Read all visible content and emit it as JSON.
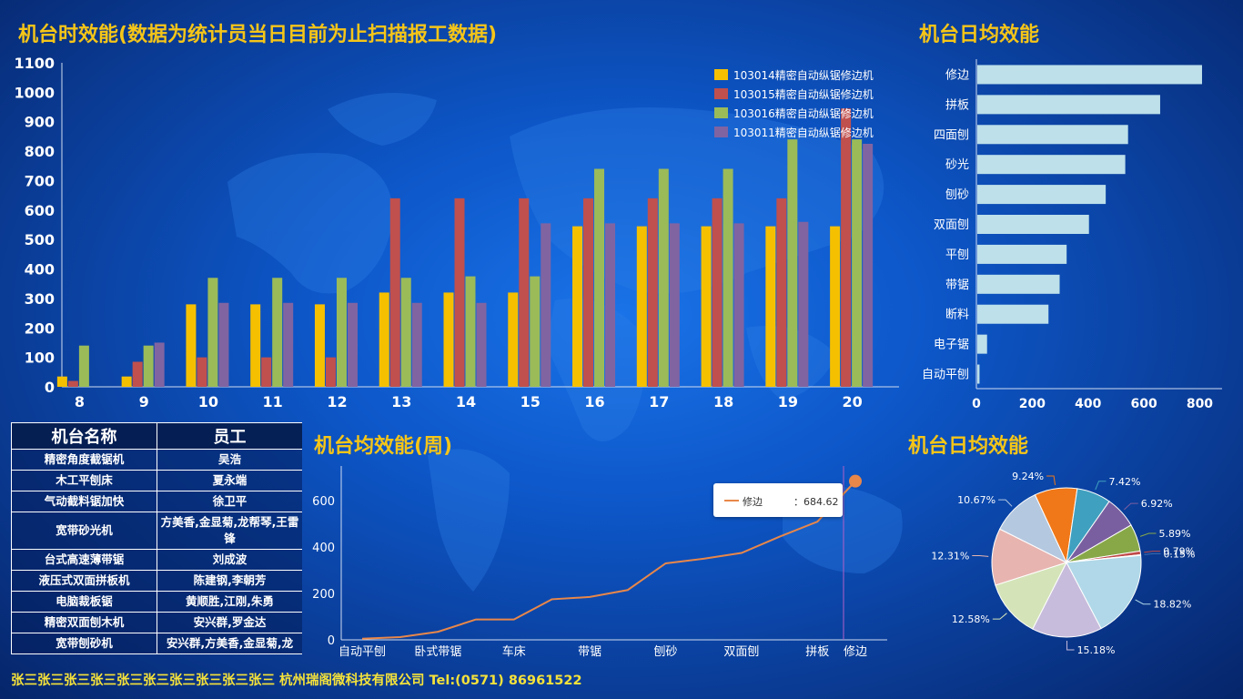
{
  "titles": {
    "hourly": "机台时效能(数据为统计员当日目前为止扫描报工数据)",
    "daily_bar": "机台日均效能",
    "weekly": "机台均效能(周)",
    "daily_pie": "机台日均效能"
  },
  "colors": {
    "title": "#f5c518",
    "series": [
      "#f5c000",
      "#c0504d",
      "#9bbb59",
      "#8064a2"
    ],
    "hbar": "#bde0ea",
    "line": "#e8874a"
  },
  "chart_data": [
    {
      "id": "hourly",
      "type": "bar",
      "categories": [
        "8",
        "9",
        "10",
        "11",
        "12",
        "13",
        "14",
        "15",
        "16",
        "17",
        "18",
        "19",
        "20"
      ],
      "ylim": [
        0,
        1100
      ],
      "yticks": [
        0,
        100,
        200,
        300,
        400,
        500,
        600,
        700,
        800,
        900,
        1000,
        1100
      ],
      "legend_position": "top-right",
      "series": [
        {
          "name": "103014精密自动纵锯修边机",
          "values": [
            35,
            35,
            280,
            280,
            280,
            320,
            320,
            320,
            545,
            545,
            545,
            545,
            545
          ]
        },
        {
          "name": "103015精密自动纵锯修边机",
          "values": [
            20,
            85,
            100,
            100,
            100,
            640,
            640,
            640,
            640,
            640,
            640,
            640,
            945
          ]
        },
        {
          "name": "103016精密自动纵锯修边机",
          "values": [
            140,
            140,
            370,
            370,
            370,
            370,
            375,
            375,
            740,
            740,
            740,
            840,
            840
          ]
        },
        {
          "name": "103011精密自动纵锯修边机",
          "values": [
            0,
            150,
            285,
            285,
            285,
            285,
            285,
            555,
            555,
            555,
            555,
            560,
            825
          ]
        }
      ]
    },
    {
      "id": "daily_bar",
      "type": "bar",
      "orientation": "horizontal",
      "categories": [
        "修边",
        "拼板",
        "四面刨",
        "砂光",
        "刨砂",
        "双面刨",
        "平刨",
        "带锯",
        "断料",
        "电子锯",
        "自动平刨"
      ],
      "values": [
        805,
        655,
        540,
        530,
        460,
        400,
        320,
        295,
        255,
        35,
        8
      ],
      "xlim": [
        0,
        880
      ],
      "xticks": [
        0,
        200,
        400,
        600,
        800
      ]
    },
    {
      "id": "weekly",
      "type": "line",
      "x": [
        "自动平刨",
        "",
        "卧式带锯",
        "",
        "车床",
        "",
        "带锯",
        "",
        "刨砂",
        "",
        "双面刨",
        "",
        "拼板",
        "修边"
      ],
      "x_labels": [
        "自动平刨",
        "卧式带锯",
        "车床",
        "带锯",
        "刨砂",
        "双面刨",
        "拼板"
      ],
      "y": [
        5,
        12,
        35,
        88,
        88,
        175,
        185,
        215,
        330,
        350,
        375,
        445,
        510,
        684.62
      ],
      "ylim": [
        0,
        750
      ],
      "yticks": [
        0,
        200,
        400,
        600
      ],
      "tooltip": {
        "series": "修边",
        "value": "：684.62"
      }
    },
    {
      "id": "daily_pie",
      "type": "pie",
      "slices": [
        {
          "label": "9.24%",
          "value": 9.24,
          "color": "#f07818"
        },
        {
          "label": "7.42%",
          "value": 7.42,
          "color": "#40a0c0"
        },
        {
          "label": "6.92%",
          "value": 6.92,
          "color": "#7a5fa0"
        },
        {
          "label": "5.89%",
          "value": 5.89,
          "color": "#88a848"
        },
        {
          "label": "0.79%",
          "value": 0.79,
          "color": "#c04848"
        },
        {
          "label": "0.15%",
          "value": 0.15,
          "color": "#3a6fb0"
        },
        {
          "label": "18.82%",
          "value": 18.82,
          "color": "#b0d8e8"
        },
        {
          "label": "15.18%",
          "value": 15.18,
          "color": "#c8bcdc"
        },
        {
          "label": "12.58%",
          "value": 12.58,
          "color": "#d4e4b8"
        },
        {
          "label": "12.31%",
          "value": 12.31,
          "color": "#e8b4b0"
        },
        {
          "label": "10.67%",
          "value": 10.67,
          "color": "#b4c8e0"
        }
      ]
    }
  ],
  "table": {
    "headers": [
      "机台名称",
      "员工"
    ],
    "rows": [
      [
        "精密角度截锯机",
        "吴浩"
      ],
      [
        "木工平刨床",
        "夏永端"
      ],
      [
        "气动截料锯加快",
        "徐卫平"
      ],
      [
        "宽带砂光机",
        "方美香,金显菊,龙帮琴,王雷锋"
      ],
      [
        "台式高速薄带锯",
        "刘成波"
      ],
      [
        "液压式双面拼板机",
        "陈建钢,李朝芳"
      ],
      [
        "电脑裁板锯",
        "黄顺胜,江刚,朱勇"
      ],
      [
        "精密双面刨木机",
        "安兴群,罗金达"
      ],
      [
        "宽带刨砂机",
        "安兴群,方美香,金显菊,龙"
      ]
    ]
  },
  "footer": "张三张三张三张三张三张三张三张三张三张三 杭州瑞阁微科技有限公司 Tel:(0571) 86961522"
}
